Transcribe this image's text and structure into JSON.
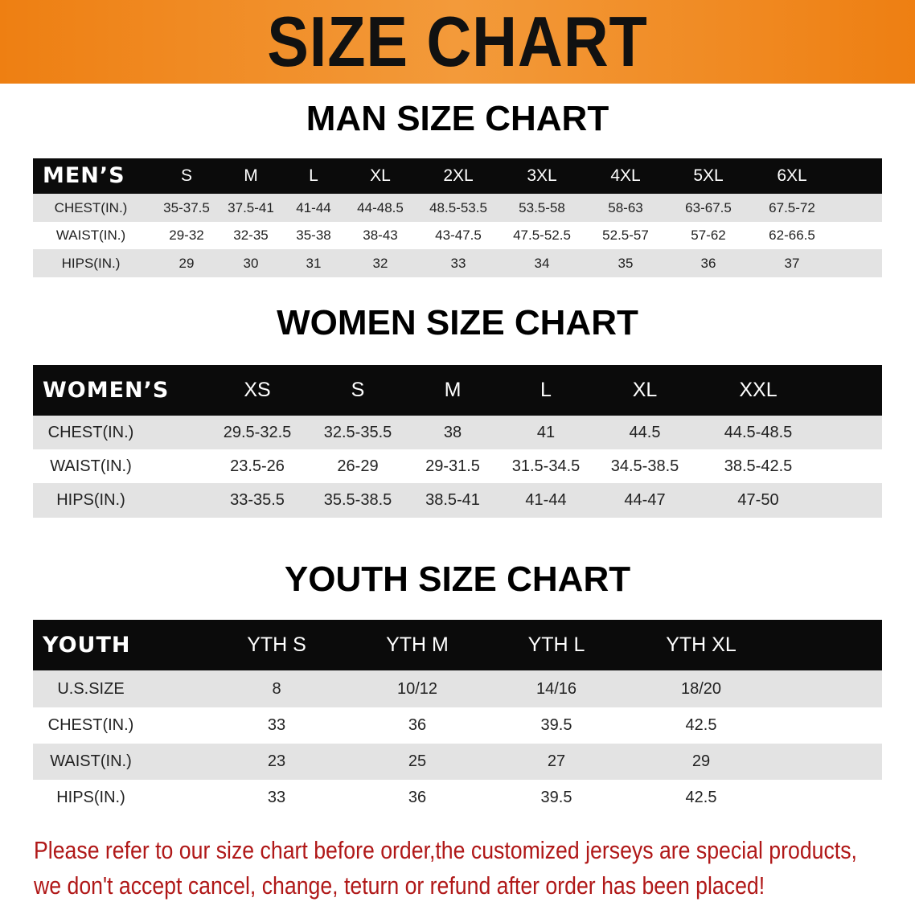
{
  "banner": {
    "title": "SIZE CHART",
    "color": "#ee7f12"
  },
  "men": {
    "title": "MAN SIZE CHART",
    "header": "MEN’S",
    "sizes": [
      "S",
      "M",
      "L",
      "XL",
      "2XL",
      "3XL",
      "4XL",
      "5XL",
      "6XL"
    ],
    "rows": [
      {
        "label": "CHEST(IN.)",
        "values": [
          "35-37.5",
          "37.5-41",
          "41-44",
          "44-48.5",
          "48.5-53.5",
          "53.5-58",
          "58-63",
          "63-67.5",
          "67.5-72"
        ]
      },
      {
        "label": "WAIST(IN.)",
        "values": [
          "29-32",
          "32-35",
          "35-38",
          "38-43",
          "43-47.5",
          "47.5-52.5",
          "52.5-57",
          "57-62",
          "62-66.5"
        ]
      },
      {
        "label": "HIPS(IN.)",
        "values": [
          "29",
          "30",
          "31",
          "32",
          "33",
          "34",
          "35",
          "36",
          "37"
        ]
      }
    ]
  },
  "women": {
    "title": "WOMEN SIZE CHART",
    "header": "WOMEN’S",
    "sizes": [
      "XS",
      "S",
      "M",
      "L",
      "XL",
      "XXL"
    ],
    "rows": [
      {
        "label": "CHEST(IN.)",
        "values": [
          "29.5-32.5",
          "32.5-35.5",
          "38",
          "41",
          "44.5",
          "44.5-48.5"
        ]
      },
      {
        "label": "WAIST(IN.)",
        "values": [
          "23.5-26",
          "26-29",
          "29-31.5",
          "31.5-34.5",
          "34.5-38.5",
          "38.5-42.5"
        ]
      },
      {
        "label": "HIPS(IN.)",
        "values": [
          "33-35.5",
          "35.5-38.5",
          "38.5-41",
          "41-44",
          "44-47",
          "47-50"
        ]
      }
    ]
  },
  "youth": {
    "title": "YOUTH SIZE CHART",
    "header": "YOUTH",
    "sizes": [
      "YTH S",
      "YTH M",
      "YTH L",
      "YTH XL"
    ],
    "rows": [
      {
        "label": "U.S.SIZE",
        "values": [
          "8",
          "10/12",
          "14/16",
          "18/20"
        ]
      },
      {
        "label": "CHEST(IN.)",
        "values": [
          "33",
          "36",
          "39.5",
          "42.5"
        ]
      },
      {
        "label": "WAIST(IN.)",
        "values": [
          "23",
          "25",
          "27",
          "29"
        ]
      },
      {
        "label": "HIPS(IN.)",
        "values": [
          "33",
          "36",
          "39.5",
          "42.5"
        ]
      }
    ]
  },
  "notice": {
    "line1": "Please refer to our size chart before order,the customized jerseys are special products,",
    "line2": "we don't accept cancel, change, teturn or refund after order has been placed!",
    "color": "#b01818"
  }
}
